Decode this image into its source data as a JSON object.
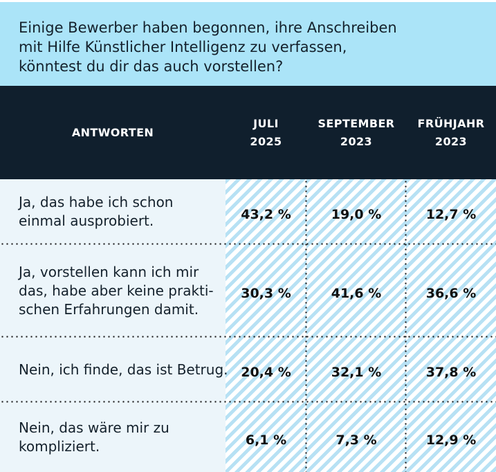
{
  "question": {
    "full_text": "Einige Bewerber haben begonnen, ihre Anschreiben mit Hilfe Künstlicher Intelligenz zu verfassen, könntest du dir das auch vorstellen?",
    "lines": [
      "Einige Bewerber haben begonnen, ihre Anschreiben",
      "mit Hilfe Künstlicher Intelligenz zu verfassen,",
      "könntest du dir das auch vorstellen?"
    ]
  },
  "table": {
    "header": {
      "answers_label": "ANTWORTEN",
      "columns": [
        {
          "label": "JULI",
          "year": "2025"
        },
        {
          "label": "SEPTEMBER",
          "year": "2023"
        },
        {
          "label": "FRÜHJAHR",
          "year": "2023"
        }
      ]
    },
    "rows": [
      {
        "answer": "Ja, das habe ich schon einmal ausprobiert.",
        "lines": [
          "Ja, das habe ich schon",
          "einmal ausprobiert."
        ],
        "values": [
          "43,2 %",
          "19,0 %",
          "12,7 %"
        ]
      },
      {
        "answer": "Ja, vorstellen kann ich mir das, habe aber keine praktischen Erfahrungen damit.",
        "lines": [
          "Ja, vorstellen kann ich mir",
          "das, habe aber keine prakti-",
          "schen Erfahrungen damit."
        ],
        "values": [
          "30,3 %",
          "41,6 %",
          "36,6 %"
        ]
      },
      {
        "answer": "Nein, ich finde, das ist Betrug.",
        "lines": [
          "Nein, ich finde, das ist Betrug."
        ],
        "values": [
          "20,4 %",
          "32,1 %",
          "37,8 %"
        ]
      },
      {
        "answer": "Nein, das wäre mir zu kompliziert.",
        "lines": [
          "Nein, das wäre mir zu",
          "kompliziert."
        ],
        "values": [
          "6,1 %",
          "7,3 %",
          "12,9 %"
        ]
      }
    ]
  },
  "colors": {
    "banner_bg": "#abe4f8",
    "header_bg": "#101f2d",
    "header_text": "#ffffff",
    "answer_col_bg": "#ecf5fa",
    "hatch_blue": "#b7e1f4",
    "hatch_white": "#ffffff",
    "text_dark": "#14212c",
    "value_text": "#111111",
    "dot_color": "#1b1b1b"
  },
  "chart_data": {
    "type": "table",
    "title": "Einige Bewerber haben begonnen, ihre Anschreiben mit Hilfe Künstlicher Intelligenz zu verfassen, könntest du dir das auch vorstellen?",
    "categories": [
      "Ja, das habe ich schon einmal ausprobiert.",
      "Ja, vorstellen kann ich mir das, habe aber keine praktischen Erfahrungen damit.",
      "Nein, ich finde, das ist Betrug.",
      "Nein, das wäre mir zu kompliziert."
    ],
    "series": [
      {
        "name": "Juli 2025",
        "values": [
          43.2,
          30.3,
          20.4,
          6.1
        ]
      },
      {
        "name": "September 2023",
        "values": [
          19.0,
          41.6,
          32.1,
          7.3
        ]
      },
      {
        "name": "Frühjahr 2023",
        "values": [
          12.7,
          36.6,
          37.8,
          12.9
        ]
      }
    ],
    "unit": "%",
    "value_format": "german-decimal-comma",
    "legend_position": "column-headers",
    "grid": "dotted-separators"
  }
}
